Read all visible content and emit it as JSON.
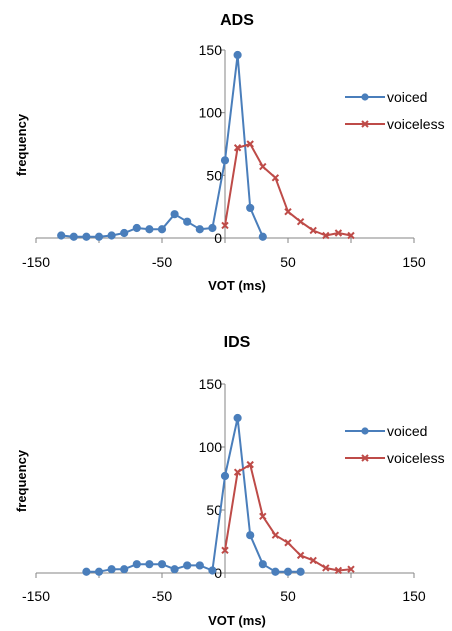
{
  "chart_data": [
    {
      "type": "line",
      "title": "ADS",
      "xlabel": "VOT (ms)",
      "ylabel": "frequency",
      "xlim": [
        -150,
        150
      ],
      "ylim": [
        0,
        150
      ],
      "xticks": [
        "-150",
        "-50",
        "50",
        "150"
      ],
      "yticks": [
        "0",
        "50",
        "100",
        "150"
      ],
      "legend_position": "right",
      "series": [
        {
          "name": "voiced",
          "color": "#4A7EBB",
          "marker": "circle",
          "x": [
            -130,
            -120,
            -110,
            -100,
            -90,
            -80,
            -70,
            -60,
            -50,
            -40,
            -30,
            -20,
            -10,
            0,
            10,
            20,
            30
          ],
          "y": [
            2,
            1,
            1,
            1,
            2,
            4,
            8,
            7,
            7,
            19,
            13,
            7,
            8,
            62,
            146,
            24,
            1
          ]
        },
        {
          "name": "voiceless",
          "color": "#BE4B48",
          "marker": "x",
          "x": [
            0,
            10,
            20,
            30,
            40,
            50,
            60,
            70,
            80,
            90,
            100
          ],
          "y": [
            10,
            72,
            75,
            57,
            48,
            21,
            13,
            6,
            2,
            4,
            2
          ]
        }
      ]
    },
    {
      "type": "line",
      "title": "IDS",
      "xlabel": "VOT (ms)",
      "ylabel": "frequency",
      "xlim": [
        -150,
        150
      ],
      "ylim": [
        0,
        150
      ],
      "xticks": [
        "-150",
        "-50",
        "50",
        "150"
      ],
      "yticks": [
        "0",
        "50",
        "100",
        "150"
      ],
      "legend_position": "right",
      "series": [
        {
          "name": "voiced",
          "color": "#4A7EBB",
          "marker": "circle",
          "x": [
            -110,
            -100,
            -90,
            -80,
            -70,
            -60,
            -50,
            -40,
            -30,
            -20,
            -10,
            0,
            10,
            20,
            30,
            40,
            50,
            60
          ],
          "y": [
            1,
            1,
            3,
            3,
            7,
            7,
            7,
            3,
            6,
            6,
            2,
            77,
            123,
            30,
            7,
            1,
            1,
            1
          ]
        },
        {
          "name": "voiceless",
          "color": "#BE4B48",
          "marker": "x",
          "x": [
            0,
            10,
            20,
            30,
            40,
            50,
            60,
            70,
            80,
            90,
            100
          ],
          "y": [
            18,
            80,
            86,
            45,
            30,
            24,
            14,
            10,
            4,
            2,
            3
          ]
        }
      ]
    }
  ]
}
